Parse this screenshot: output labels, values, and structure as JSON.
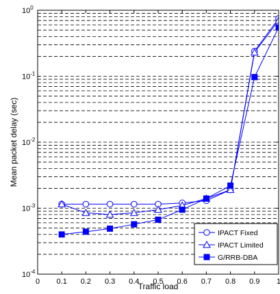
{
  "chart_data": {
    "type": "line",
    "title": "",
    "xlabel": "Traffic load",
    "ylabel": "Mean packet delay (sec)",
    "xlim": [
      0,
      1
    ],
    "ylim": [
      0.0001,
      1
    ],
    "yscale": "log",
    "grid": "horizontal dashed, minor and major",
    "legend_position": "bottom-right",
    "x_ticks": [
      "0",
      "0.1",
      "0.2",
      "0.3",
      "0.4",
      "0.5",
      "0.6",
      "0.7",
      "0.8",
      "0.9",
      "1"
    ],
    "y_ticks": [
      {
        "base": "10",
        "exp": "-4"
      },
      {
        "base": "10",
        "exp": "-3"
      },
      {
        "base": "10",
        "exp": "-2"
      },
      {
        "base": "10",
        "exp": "-1"
      },
      {
        "base": "10",
        "exp": "0"
      }
    ],
    "x": [
      0.1,
      0.2,
      0.3,
      0.4,
      0.5,
      0.6,
      0.7,
      0.8,
      0.9,
      1.0
    ],
    "series": [
      {
        "name": "IPACT Fixed",
        "marker": "circle-open",
        "values": [
          0.00115,
          0.00115,
          0.00115,
          0.00115,
          0.00115,
          0.0012,
          0.0013,
          0.0019,
          0.24,
          0.75
        ]
      },
      {
        "name": "IPACT Limited",
        "marker": "triangle-open",
        "values": [
          0.00115,
          0.00085,
          0.0008,
          0.00085,
          0.00095,
          0.0011,
          0.0014,
          0.0019,
          0.23,
          0.7
        ]
      },
      {
        "name": "G/RRB-DBA",
        "marker": "square-filled",
        "values": [
          0.0004,
          0.00044,
          0.00049,
          0.00057,
          0.00067,
          0.00095,
          0.0014,
          0.0022,
          0.097,
          0.55
        ]
      }
    ],
    "colors": {
      "series": "#0000ff",
      "axes": "#000000",
      "grid": "#000000",
      "background": "#ffffff"
    }
  }
}
